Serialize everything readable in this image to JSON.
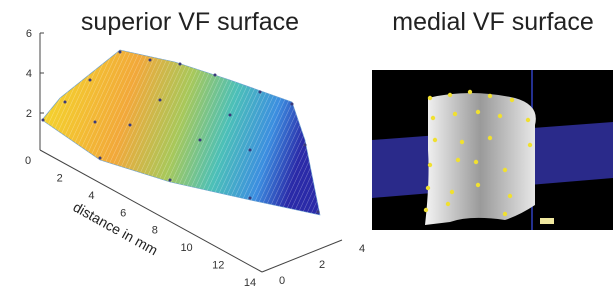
{
  "panels": [
    {
      "title": "superior VF surface",
      "z_ticks": [
        6,
        4,
        2
      ],
      "x_ticks": [
        0,
        2,
        4,
        6,
        8,
        10,
        12,
        14
      ],
      "x_label": "distance in mm",
      "y_ticks": [
        0,
        2,
        4
      ]
    },
    {
      "title": "medial VF surface"
    }
  ]
}
